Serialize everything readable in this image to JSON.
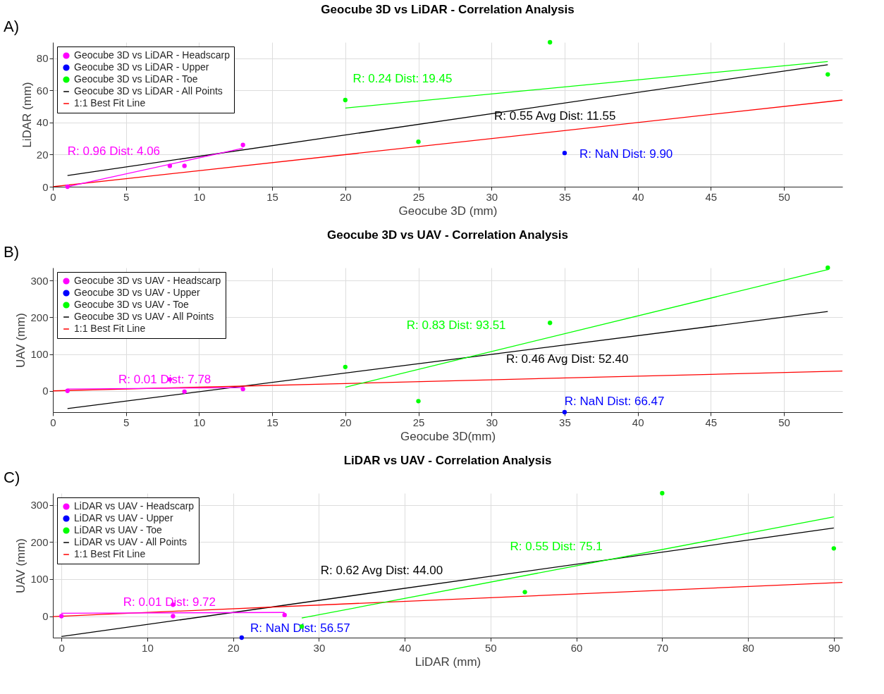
{
  "chart_data": [
    {
      "type": "scatter",
      "title": "Geocube 3D vs LiDAR - Correlation Analysis",
      "xlabel": "Geocube 3D (mm)",
      "ylabel": "LiDAR (mm)",
      "xlim": [
        0,
        54
      ],
      "ylim": [
        0,
        90
      ],
      "xticks": [
        0,
        5,
        10,
        15,
        20,
        25,
        30,
        35,
        40,
        45,
        50
      ],
      "yticks": [
        0,
        20,
        40,
        60,
        80
      ],
      "grid": true,
      "legend": "top left",
      "series": [
        {
          "name": "Geocube 3D vs LiDAR - Headscarp",
          "marker": "circle",
          "color": "#ff00ff",
          "x": [
            1,
            8,
            9,
            13
          ],
          "values": [
            0,
            13,
            13,
            26
          ]
        },
        {
          "name": "Geocube 3D vs LiDAR - Upper",
          "marker": "circle",
          "color": "#0000ff",
          "x": [
            35
          ],
          "values": [
            21
          ]
        },
        {
          "name": "Geocube 3D vs LiDAR - Toe",
          "marker": "circle",
          "color": "#00ff00",
          "x": [
            20,
            25,
            34,
            53
          ],
          "values": [
            54,
            28,
            90,
            70
          ]
        },
        {
          "name": "Geocube 3D vs LiDAR - All Points",
          "type": "line",
          "color": "#000000",
          "x": [
            1,
            53
          ],
          "values": [
            7,
            76
          ]
        },
        {
          "name": "1:1 Best Fit Line",
          "type": "line",
          "color": "#ff0000",
          "x": [
            0,
            54
          ],
          "values": [
            0,
            54
          ]
        },
        {
          "type": "line",
          "color": "#ff00ff",
          "x": [
            1,
            13
          ],
          "values": [
            0,
            24
          ]
        },
        {
          "type": "line",
          "color": "#00ff00",
          "x": [
            20,
            53
          ],
          "values": [
            49,
            78
          ]
        }
      ],
      "annotations": [
        "A)",
        "R: 0.96   Dist: 4.06",
        "R: NaN   Dist: 9.90",
        "R: 0.24   Dist: 19.45",
        "R: 0.55   Avg Dist: 11.55"
      ]
    },
    {
      "type": "scatter",
      "title": "Geocube 3D vs UAV - Correlation Analysis",
      "xlabel": "Geocube 3D(mm)",
      "ylabel": "UAV (mm)",
      "xlim": [
        0,
        54
      ],
      "ylim": [
        -58,
        335
      ],
      "xticks": [
        0,
        5,
        10,
        15,
        20,
        25,
        30,
        35,
        40,
        45,
        50
      ],
      "yticks": [
        0,
        100,
        200,
        300
      ],
      "grid": true,
      "legend": "top left",
      "series": [
        {
          "name": "Geocube 3D vs UAV - Headscarp",
          "marker": "circle",
          "color": "#ff00ff",
          "x": [
            1,
            8,
            9,
            13
          ],
          "values": [
            0,
            31,
            -2,
            5
          ]
        },
        {
          "name": "Geocube 3D vs UAV - Upper",
          "marker": "circle",
          "color": "#0000ff",
          "x": [
            35
          ],
          "values": [
            -58
          ]
        },
        {
          "name": "Geocube 3D vs UAV - Toe",
          "marker": "circle",
          "color": "#00ff00",
          "x": [
            20,
            25,
            34,
            53
          ],
          "values": [
            65,
            -28,
            185,
            335
          ]
        },
        {
          "name": "Geocube 3D vs UAV - All Points",
          "type": "line",
          "color": "#000000",
          "x": [
            1,
            53
          ],
          "values": [
            -48,
            216
          ]
        },
        {
          "name": "1:1 Best Fit Line",
          "type": "line",
          "color": "#ff0000",
          "x": [
            0,
            54
          ],
          "values": [
            0,
            54
          ]
        },
        {
          "type": "line",
          "color": "#ff00ff",
          "x": [
            1,
            13
          ],
          "values": [
            5,
            9
          ]
        },
        {
          "type": "line",
          "color": "#00ff00",
          "x": [
            20,
            53
          ],
          "values": [
            10,
            330
          ]
        }
      ],
      "annotations": [
        "B)",
        "R: 0.01   Dist: 7.78",
        "R: NaN   Dist: 66.47",
        "R: 0.83   Dist: 93.51",
        "R: 0.46   Avg Dist: 52.40"
      ]
    },
    {
      "type": "scatter",
      "title": "LiDAR vs UAV - Correlation Analysis",
      "xlabel": "LiDAR (mm)",
      "ylabel": "UAV (mm)",
      "xlim": [
        -1,
        91
      ],
      "ylim": [
        -58,
        332
      ],
      "xticks": [
        0,
        10,
        20,
        30,
        40,
        50,
        60,
        70,
        80,
        90
      ],
      "yticks": [
        0,
        100,
        200,
        300
      ],
      "grid": true,
      "legend": "top left",
      "series": [
        {
          "name": "LiDAR vs UAV - Headscarp",
          "marker": "circle",
          "color": "#ff00ff",
          "x": [
            0,
            13,
            13,
            26
          ],
          "values": [
            0,
            31,
            0,
            3
          ]
        },
        {
          "name": "LiDAR vs UAV - Upper",
          "marker": "circle",
          "color": "#0000ff",
          "x": [
            21
          ],
          "values": [
            -58
          ]
        },
        {
          "name": "LiDAR vs UAV - Toe",
          "marker": "circle",
          "color": "#00ff00",
          "x": [
            28,
            54,
            70,
            90
          ],
          "values": [
            -28,
            65,
            332,
            183
          ]
        },
        {
          "name": "LiDAR vs UAV - All Points",
          "type": "line",
          "color": "#000000",
          "x": [
            0,
            90
          ],
          "values": [
            -55,
            238
          ]
        },
        {
          "name": "1:1 Best Fit Line",
          "type": "line",
          "color": "#ff0000",
          "x": [
            -1,
            91
          ],
          "values": [
            -1,
            91
          ]
        },
        {
          "type": "line",
          "color": "#ff00ff",
          "x": [
            0,
            26
          ],
          "values": [
            8,
            10
          ]
        },
        {
          "type": "line",
          "color": "#00ff00",
          "x": [
            28,
            90
          ],
          "values": [
            -5,
            268
          ]
        }
      ],
      "annotations": [
        "C)",
        "R: 0.01   Dist: 9.72",
        "R: NaN   Dist: 56.57",
        "R: 0.55   Dist: 75.1",
        "R: 0.62   Avg Dist: 44.00"
      ]
    }
  ]
}
